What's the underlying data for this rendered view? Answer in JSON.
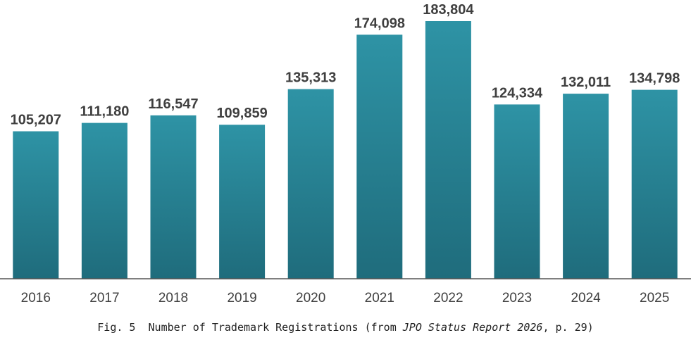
{
  "chart_data": {
    "type": "bar",
    "categories": [
      "2016",
      "2017",
      "2018",
      "2019",
      "2020",
      "2021",
      "2022",
      "2023",
      "2024",
      "2025"
    ],
    "values": [
      105207,
      111180,
      116547,
      109859,
      135313,
      174098,
      183804,
      124334,
      132011,
      134798
    ],
    "value_labels": [
      "105,207",
      "111,180",
      "116,547",
      "109,859",
      "135,313",
      "174,098",
      "183,804",
      "124,334",
      "132,011",
      "134,798"
    ],
    "ylim": [
      0,
      183804
    ],
    "grid": false,
    "legend": "none",
    "colors": {
      "bar_top": "#2e93a5",
      "bar_bottom": "#1f6c7c",
      "axis": "#555555",
      "label": "#3f3f3f"
    }
  },
  "caption": {
    "prefix": "Fig. 5  Number of Trademark Registrations (from ",
    "source": "JPO Status Report 2026",
    "suffix": ", p. 29)"
  }
}
